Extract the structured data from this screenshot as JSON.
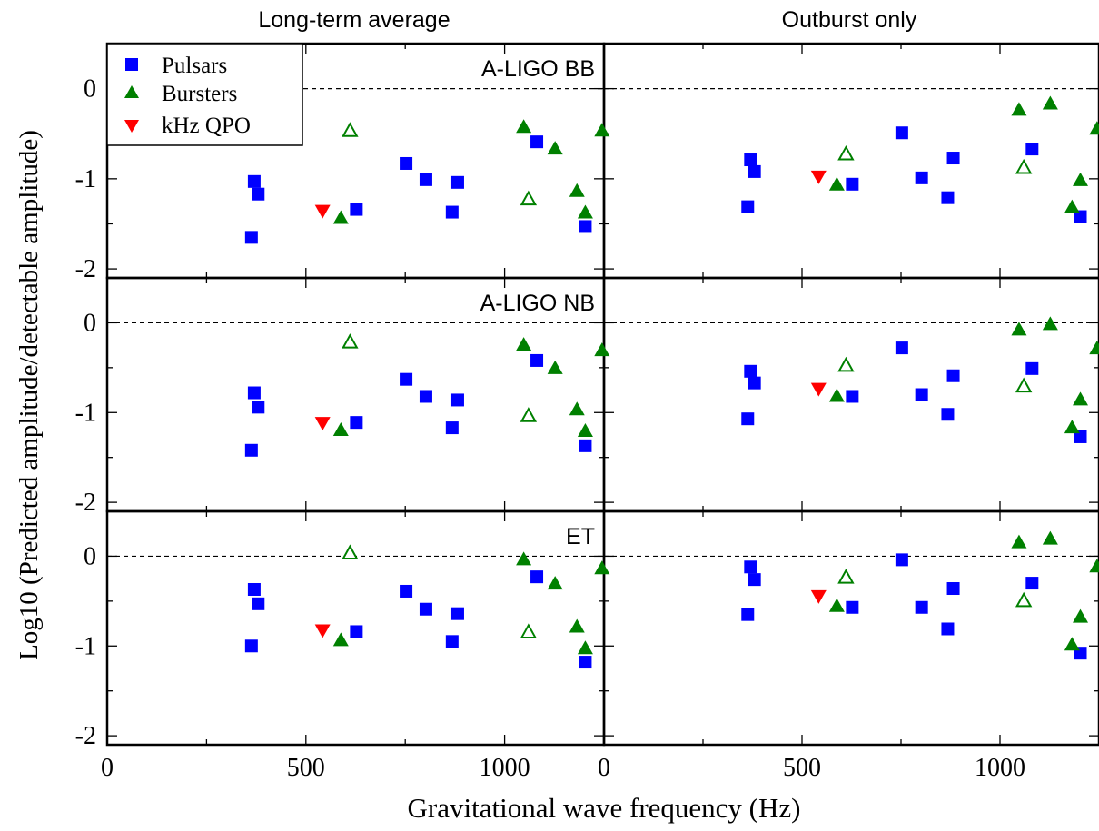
{
  "figure": {
    "col_titles": [
      "Long-term average",
      "Outburst only"
    ],
    "xlabel": "Gravitational wave frequency (Hz)",
    "ylabel": "Log10 (Predicted amplitude/detectable amplitude)"
  },
  "legend": {
    "placement": "top-left",
    "items": [
      {
        "label": "Pulsars",
        "color": "#0000ff",
        "marker": "square"
      },
      {
        "label": "Bursters",
        "color": "#008000",
        "marker": "triangle-up"
      },
      {
        "label": "kHz QPO",
        "color": "#ff0000",
        "marker": "triangle-down"
      }
    ]
  },
  "chart_data": {
    "type": "scatter",
    "xlim": [
      0,
      1250
    ],
    "ylim": [
      -2.1,
      0.5
    ],
    "xticks": [
      0,
      500,
      1000
    ],
    "yticks": [
      0,
      -1,
      -2
    ],
    "ytick_labels": [
      "0",
      "-1",
      "-2"
    ],
    "xtick_labels": [
      "0",
      "500",
      "1000"
    ],
    "reference_line": 0,
    "grid": false,
    "panels": [
      {
        "detector": "A-LIGO BB",
        "column": "Long-term average",
        "pulsars": [
          [
            363,
            -1.65
          ],
          [
            370,
            -1.03
          ],
          [
            380,
            -1.17
          ],
          [
            627,
            -1.34
          ],
          [
            752,
            -0.83
          ],
          [
            802,
            -1.01
          ],
          [
            868,
            -1.37
          ],
          [
            882,
            -1.04
          ],
          [
            1081,
            -0.59
          ],
          [
            1203,
            -1.53
          ]
        ],
        "bursters_filled": [
          [
            588,
            -1.44
          ],
          [
            1048,
            -0.43
          ],
          [
            1127,
            -0.67
          ],
          [
            1182,
            -1.14
          ],
          [
            1203,
            -1.38
          ],
          [
            1245,
            -0.47
          ]
        ],
        "bursters_open": [
          [
            611,
            -0.47
          ],
          [
            1060,
            -1.23
          ]
        ],
        "khz_qpo": [
          [
            542,
            -1.35
          ]
        ]
      },
      {
        "detector": "A-LIGO BB",
        "column": "Outburst only",
        "pulsars": [
          [
            363,
            -1.31
          ],
          [
            370,
            -0.79
          ],
          [
            380,
            -0.92
          ],
          [
            627,
            -1.06
          ],
          [
            752,
            -0.49
          ],
          [
            802,
            -0.99
          ],
          [
            868,
            -1.21
          ],
          [
            882,
            -0.77
          ],
          [
            1081,
            -0.67
          ],
          [
            1203,
            -1.42
          ]
        ],
        "bursters_filled": [
          [
            588,
            -1.07
          ],
          [
            1048,
            -0.24
          ],
          [
            1127,
            -0.17
          ],
          [
            1182,
            -1.32
          ],
          [
            1203,
            -1.02
          ],
          [
            1245,
            -0.45
          ]
        ],
        "bursters_open": [
          [
            611,
            -0.73
          ],
          [
            1060,
            -0.88
          ]
        ],
        "khz_qpo": [
          [
            542,
            -0.97
          ]
        ]
      },
      {
        "detector": "A-LIGO NB",
        "column": "Long-term average",
        "pulsars": [
          [
            363,
            -1.42
          ],
          [
            370,
            -0.78
          ],
          [
            380,
            -0.94
          ],
          [
            627,
            -1.11
          ],
          [
            752,
            -0.63
          ],
          [
            802,
            -0.82
          ],
          [
            868,
            -1.17
          ],
          [
            882,
            -0.86
          ],
          [
            1081,
            -0.42
          ],
          [
            1203,
            -1.37
          ]
        ],
        "bursters_filled": [
          [
            588,
            -1.2
          ],
          [
            1048,
            -0.25
          ],
          [
            1127,
            -0.51
          ],
          [
            1182,
            -0.97
          ],
          [
            1203,
            -1.21
          ],
          [
            1245,
            -0.31
          ]
        ],
        "bursters_open": [
          [
            611,
            -0.22
          ],
          [
            1060,
            -1.04
          ]
        ],
        "khz_qpo": [
          [
            542,
            -1.11
          ]
        ]
      },
      {
        "detector": "A-LIGO NB",
        "column": "Outburst only",
        "pulsars": [
          [
            363,
            -1.07
          ],
          [
            370,
            -0.54
          ],
          [
            380,
            -0.67
          ],
          [
            627,
            -0.82
          ],
          [
            752,
            -0.28
          ],
          [
            802,
            -0.8
          ],
          [
            868,
            -1.02
          ],
          [
            882,
            -0.59
          ],
          [
            1081,
            -0.51
          ],
          [
            1203,
            -1.27
          ]
        ],
        "bursters_filled": [
          [
            588,
            -0.82
          ],
          [
            1048,
            -0.08
          ],
          [
            1127,
            -0.02
          ],
          [
            1182,
            -1.17
          ],
          [
            1203,
            -0.86
          ],
          [
            1245,
            -0.29
          ]
        ],
        "bursters_open": [
          [
            611,
            -0.48
          ],
          [
            1060,
            -0.71
          ]
        ],
        "khz_qpo": [
          [
            542,
            -0.73
          ]
        ]
      },
      {
        "detector": "ET",
        "column": "Long-term average",
        "pulsars": [
          [
            363,
            -1
          ],
          [
            370,
            -0.37
          ],
          [
            380,
            -0.53
          ],
          [
            627,
            -0.84
          ],
          [
            752,
            -0.39
          ],
          [
            802,
            -0.59
          ],
          [
            868,
            -0.95
          ],
          [
            882,
            -0.64
          ],
          [
            1081,
            -0.23
          ],
          [
            1203,
            -1.18
          ]
        ],
        "bursters_filled": [
          [
            588,
            -0.94
          ],
          [
            1048,
            -0.04
          ],
          [
            1127,
            -0.31
          ],
          [
            1182,
            -0.79
          ],
          [
            1203,
            -1.03
          ],
          [
            1245,
            -0.14
          ]
        ],
        "bursters_open": [
          [
            611,
            0.03
          ],
          [
            1060,
            -0.85
          ]
        ],
        "khz_qpo": [
          [
            542,
            -0.82
          ]
        ]
      },
      {
        "detector": "ET",
        "column": "Outburst only",
        "pulsars": [
          [
            363,
            -0.65
          ],
          [
            370,
            -0.12
          ],
          [
            380,
            -0.26
          ],
          [
            627,
            -0.57
          ],
          [
            752,
            -0.04
          ],
          [
            802,
            -0.57
          ],
          [
            868,
            -0.81
          ],
          [
            882,
            -0.36
          ],
          [
            1081,
            -0.3
          ],
          [
            1203,
            -1.08
          ]
        ],
        "bursters_filled": [
          [
            588,
            -0.56
          ],
          [
            1048,
            0.15
          ],
          [
            1127,
            0.19
          ],
          [
            1182,
            -0.99
          ],
          [
            1203,
            -0.68
          ],
          [
            1245,
            -0.12
          ]
        ],
        "bursters_open": [
          [
            611,
            -0.24
          ],
          [
            1060,
            -0.5
          ]
        ],
        "khz_qpo": [
          [
            542,
            -0.44
          ]
        ]
      }
    ]
  }
}
